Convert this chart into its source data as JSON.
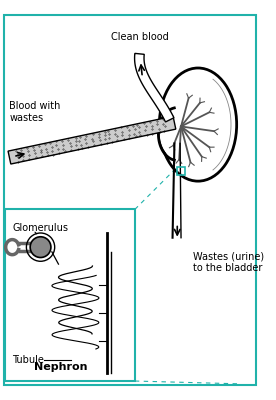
{
  "figure_bg": "#ffffff",
  "outer_border_color": "#20b2aa",
  "inset_border_color": "#20b2aa",
  "dashed_line_color": "#20b2aa",
  "label_blood_with_wastes": "Blood with\nwastes",
  "label_clean_blood": "Clean blood",
  "label_wastes": "Wastes (urine)\nto the bladder",
  "label_glomerulus": "Glomerulus",
  "label_tubule": "Tubule",
  "label_nephron": "Nephron",
  "text_color": "#000000",
  "font_size_labels": 7,
  "font_size_nephron": 8
}
